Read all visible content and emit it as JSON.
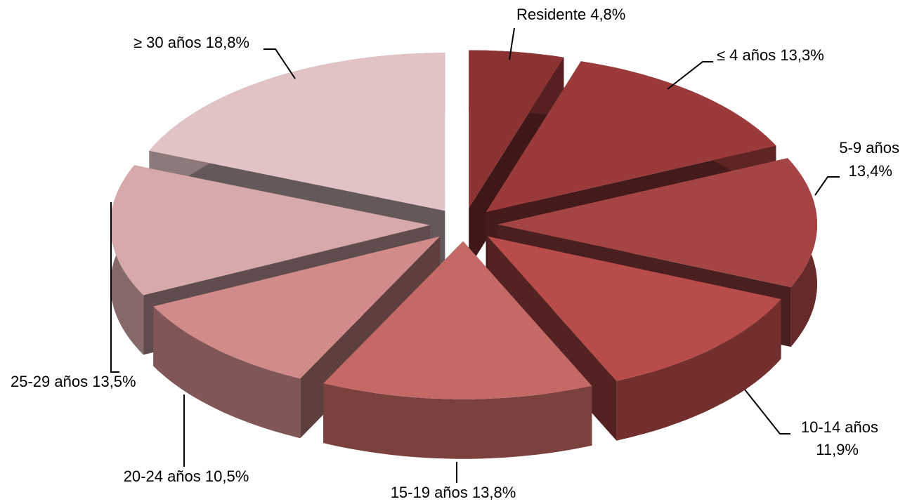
{
  "chart_data": {
    "type": "pie3d",
    "categories": [
      "Residente",
      "≤ 4 años",
      "5-9 años",
      "10-14 años",
      "15-19 años",
      "20-24 años",
      "25-29 años",
      "≥ 30 años"
    ],
    "values": [
      4.8,
      13.3,
      13.4,
      11.9,
      13.8,
      10.5,
      13.5,
      18.8
    ],
    "value_labels": [
      "4,8%",
      "13,3%",
      "13,4%",
      "11,9%",
      "13,8%",
      "10,5%",
      "13,5%",
      "18,8%"
    ],
    "colors": [
      "#8b3333",
      "#9a3a3a",
      "#a54444",
      "#b84c4a",
      "#c46966",
      "#d08b8a",
      "#d8a9aa",
      "#e1c3c5"
    ]
  }
}
